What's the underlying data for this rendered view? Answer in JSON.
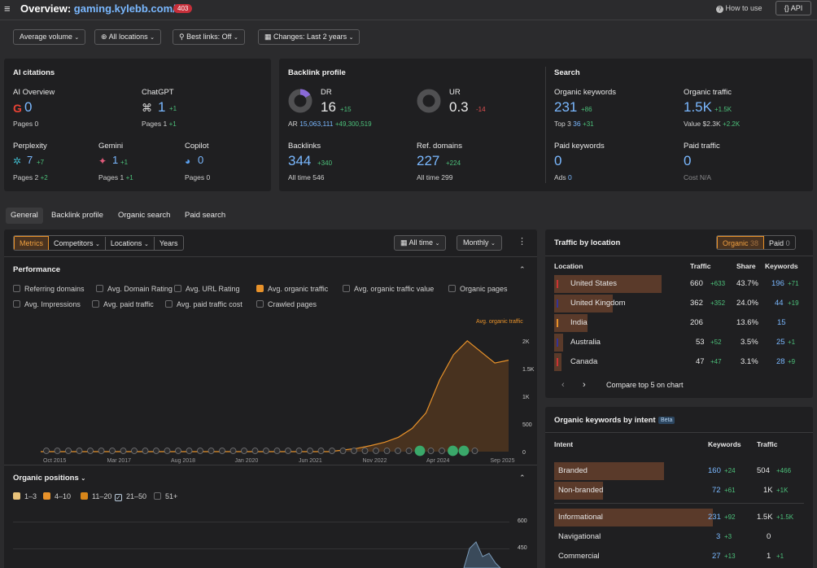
{
  "header": {
    "title_prefix": "Overview:",
    "domain": "gaming.kylebb.com/",
    "badge": "403",
    "how_to_use": "How to use",
    "api": "API"
  },
  "filters": {
    "volume": "Average volume",
    "locations": "All locations",
    "best_links": "Best links: Off",
    "changes": "Changes: Last 2 years"
  },
  "ai_citations": {
    "title": "AI citations",
    "items": [
      {
        "name": "AI Overview",
        "value": "0",
        "delta": "",
        "pages_label": "Pages",
        "pages": "0",
        "pages_delta": ""
      },
      {
        "name": "ChatGPT",
        "value": "1",
        "delta": "+1",
        "pages_label": "Pages",
        "pages": "1",
        "pages_delta": "+1"
      },
      {
        "name": "Perplexity",
        "value": "7",
        "delta": "+7",
        "pages_label": "Pages",
        "pages": "2",
        "pages_delta": "+2"
      },
      {
        "name": "Gemini",
        "value": "1",
        "delta": "+1",
        "pages_label": "Pages",
        "pages": "1",
        "pages_delta": "+1"
      },
      {
        "name": "Copilot",
        "value": "0",
        "delta": "",
        "pages_label": "Pages",
        "pages": "0",
        "pages_delta": ""
      }
    ]
  },
  "backlink_profile": {
    "title": "Backlink profile",
    "dr_label": "DR",
    "dr": "16",
    "dr_delta": "+15",
    "ur_label": "UR",
    "ur": "0.3",
    "ur_delta": "-14",
    "ar_label": "AR",
    "ar": "15,063,111",
    "ar_delta": "+49,300,519",
    "backlinks_label": "Backlinks",
    "backlinks": "344",
    "backlinks_delta": "+340",
    "backlinks_alltime_label": "All time",
    "backlinks_alltime": "546",
    "ref_label": "Ref. domains",
    "ref": "227",
    "ref_delta": "+224",
    "ref_alltime_label": "All time",
    "ref_alltime": "299",
    "dr_fill": 0.16
  },
  "search": {
    "title": "Search",
    "ok_label": "Organic keywords",
    "ok": "231",
    "ok_delta": "+86",
    "top3_label": "Top 3",
    "top3": "36",
    "top3_delta": "+31",
    "ot_label": "Organic traffic",
    "ot": "1.5K",
    "ot_delta": "+1.5K",
    "value_label": "Value",
    "value": "$2.3K",
    "value_delta": "+2.2K",
    "pk_label": "Paid keywords",
    "pk": "0",
    "ads_label": "Ads",
    "ads": "0",
    "pt_label": "Paid traffic",
    "pt": "0",
    "cost_label": "Cost",
    "cost": "N/A"
  },
  "tabs": [
    "General",
    "Backlink profile",
    "Organic search",
    "Paid search"
  ],
  "chart_toolbar": {
    "metrics": "Metrics",
    "competitors": "Competitors",
    "locations": "Locations",
    "years": "Years",
    "all_time": "All time",
    "monthly": "Monthly"
  },
  "performance": {
    "title": "Performance",
    "options": [
      "Referring domains",
      "Avg. Domain Rating",
      "Avg. URL Rating",
      "Avg. organic traffic",
      "Avg. organic traffic value",
      "Organic pages",
      "Avg. Impressions",
      "Avg. paid traffic",
      "Avg. paid traffic cost",
      "Crawled pages"
    ],
    "series_label": "Avg. organic traffic"
  },
  "chart_data": {
    "type": "area",
    "title": "",
    "series": [
      {
        "name": "Avg. organic traffic",
        "values": [
          0,
          0,
          0,
          0,
          0,
          0,
          0,
          0,
          0,
          0,
          0,
          0,
          0,
          0,
          0,
          0,
          0,
          0,
          0,
          0,
          0,
          0,
          30,
          60,
          110,
          170,
          260,
          420,
          700,
          1300,
          1750,
          2000,
          1800,
          1600,
          1650
        ]
      }
    ],
    "x_ticks": [
      "Oct 2015",
      "Mar 2017",
      "Aug 2018",
      "Jan 2020",
      "Jun 2021",
      "Nov 2022",
      "Apr 2024",
      "Sep 2025"
    ],
    "y_ticks": [
      "0",
      "500",
      "1K",
      "1.5K",
      "2K"
    ],
    "ylim": [
      0,
      2100
    ],
    "color": "#e8922a"
  },
  "organic_positions": {
    "title": "Organic positions",
    "options": [
      "1–3",
      "4–10",
      "11–20",
      "21–50",
      "51+"
    ],
    "y_ticks": [
      "600",
      "450"
    ]
  },
  "traffic_by_location": {
    "title": "Traffic by location",
    "organic_label": "Organic",
    "organic_count": "38",
    "paid_label": "Paid",
    "paid_count": "0",
    "cols": [
      "Location",
      "Traffic",
      "Share",
      "Keywords"
    ],
    "rows": [
      {
        "loc": "United States",
        "traffic": "660",
        "tdelta": "+633",
        "share": "43.7%",
        "kw": "196",
        "kdelta": "+71",
        "share_frac": 0.437
      },
      {
        "loc": "United Kingdom",
        "traffic": "362",
        "tdelta": "+352",
        "share": "24.0%",
        "kw": "44",
        "kdelta": "+19",
        "share_frac": 0.24
      },
      {
        "loc": "India",
        "traffic": "206",
        "tdelta": "",
        "share": "13.6%",
        "kw": "15",
        "kdelta": "",
        "share_frac": 0.136
      },
      {
        "loc": "Australia",
        "traffic": "53",
        "tdelta": "+52",
        "share": "3.5%",
        "kw": "25",
        "kdelta": "+1",
        "share_frac": 0.035
      },
      {
        "loc": "Canada",
        "traffic": "47",
        "tdelta": "+47",
        "share": "3.1%",
        "kw": "28",
        "kdelta": "+9",
        "share_frac": 0.031
      }
    ],
    "compare": "Compare top 5 on chart"
  },
  "keywords_by_intent": {
    "title": "Organic keywords by intent",
    "beta": "Beta",
    "cols": [
      "Intent",
      "Keywords",
      "Traffic"
    ],
    "rows": [
      {
        "intent": "Branded",
        "kw": "160",
        "kdelta": "+24",
        "traffic": "504",
        "tdelta": "+466",
        "fill": 0.69
      },
      {
        "intent": "Non-branded",
        "kw": "72",
        "kdelta": "+61",
        "traffic": "1K",
        "tdelta": "+1K",
        "fill": 0.31
      },
      {
        "intent": "Informational",
        "kw": "231",
        "kdelta": "+92",
        "traffic": "1.5K",
        "tdelta": "+1.5K",
        "fill": 1.0
      },
      {
        "intent": "Navigational",
        "kw": "3",
        "kdelta": "+3",
        "traffic": "0",
        "tdelta": "",
        "fill": 0.0
      },
      {
        "intent": "Commercial",
        "kw": "27",
        "kdelta": "+13",
        "traffic": "1",
        "tdelta": "+1",
        "fill": 0.0
      }
    ]
  }
}
